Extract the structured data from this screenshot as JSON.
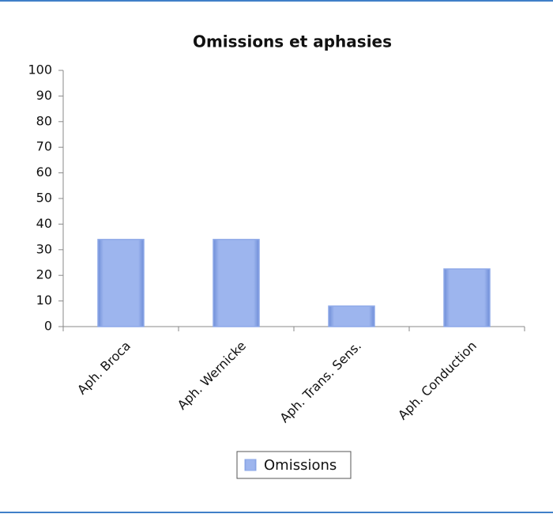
{
  "chart_data": {
    "type": "bar",
    "title": "Omissions et aphasies",
    "categories": [
      "Aph. Broca",
      "Aph. Wernicke",
      "Aph. Trans. Sens.",
      "Aph. Conduction"
    ],
    "series": [
      {
        "name": "Omissions",
        "color": "#8ea9e8",
        "values": [
          34,
          34,
          8,
          22.5
        ]
      }
    ],
    "ylim": [
      0,
      100
    ],
    "yticks": [
      0,
      10,
      20,
      30,
      40,
      50,
      60,
      70,
      80,
      90,
      100
    ],
    "grid": false,
    "legend": "bottom"
  }
}
